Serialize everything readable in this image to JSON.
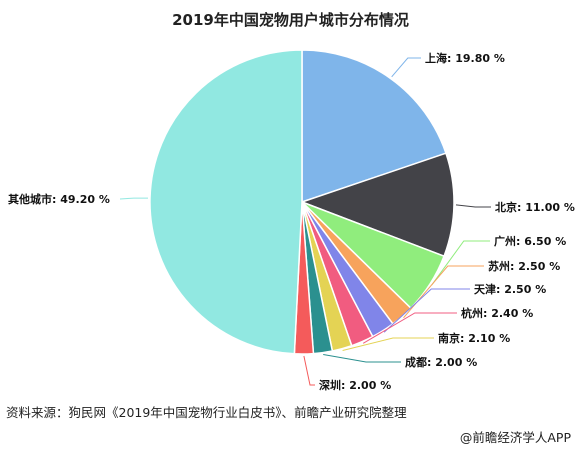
{
  "chart_data": {
    "type": "pie",
    "title": "2019年中国宠物用户城市分布情况",
    "slices": [
      {
        "name": "上海",
        "value": 19.8,
        "label": "上海: 19.80 %",
        "color": "#7fb5ea"
      },
      {
        "name": "北京",
        "value": 11.0,
        "label": "北京: 11.00 %",
        "color": "#434348"
      },
      {
        "name": "广州",
        "value": 6.5,
        "label": "广州: 6.50 %",
        "color": "#90ed7d"
      },
      {
        "name": "苏州",
        "value": 2.5,
        "label": "苏州: 2.50 %",
        "color": "#f7a35c"
      },
      {
        "name": "天津",
        "value": 2.5,
        "label": "天津: 2.50 %",
        "color": "#8085e9"
      },
      {
        "name": "杭州",
        "value": 2.4,
        "label": "杭州: 2.40 %",
        "color": "#f15c80"
      },
      {
        "name": "南京",
        "value": 2.1,
        "label": "南京: 2.10 %",
        "color": "#e4d354"
      },
      {
        "name": "成都",
        "value": 2.0,
        "label": "成都: 2.00 %",
        "color": "#2b908f"
      },
      {
        "name": "深圳",
        "value": 2.0,
        "label": "深圳: 2.00 %",
        "color": "#f45b5b"
      },
      {
        "name": "其他城市",
        "value": 49.2,
        "label": "其他城市: 49.20 %",
        "color": "#91e8e1"
      }
    ]
  },
  "footer": {
    "source": "资料来源：狗民网《2019年中国宠物行业白皮书》、前瞻产业研究院整理",
    "watermark": "@前瞻经济学人APP"
  }
}
